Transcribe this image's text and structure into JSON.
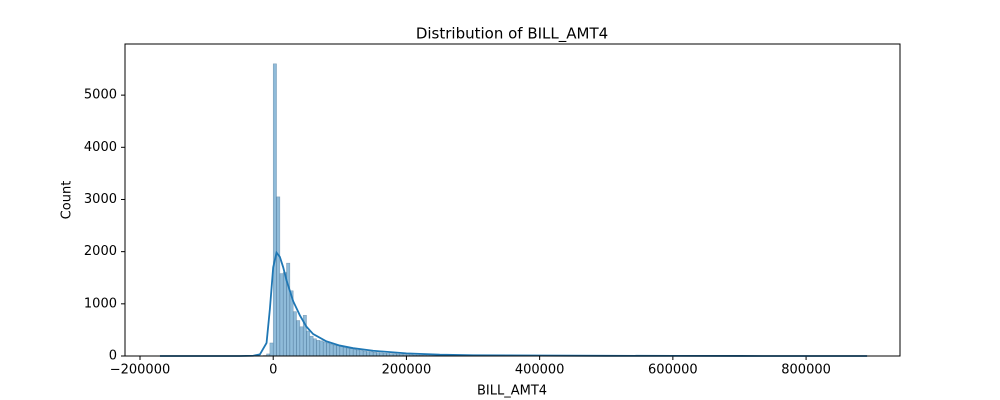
{
  "chart_data": {
    "type": "histogram",
    "title": "Distribution of BILL_AMT4",
    "x_label": "BILL_AMT4",
    "y_label": "Count",
    "color": "#1f77b4",
    "bins": [
      -170000,
      -165000,
      -160000,
      -155000,
      -150000,
      -145000,
      -140000,
      -135000,
      -130000,
      -125000,
      -120000,
      -115000,
      -110000,
      -105000,
      -100000,
      -95000,
      -90000,
      -85000,
      -80000,
      -75000,
      -70000,
      -65000,
      -60000,
      -55000,
      -50000,
      -45000,
      -40000,
      -35000,
      -30000,
      -25000,
      -20000,
      -15000,
      -10000,
      -5000,
      0,
      5000,
      10000,
      15000,
      20000,
      25000,
      30000,
      35000,
      40000,
      45000,
      50000,
      55000,
      60000,
      65000,
      70000,
      75000,
      80000,
      85000,
      90000,
      95000,
      100000,
      105000,
      110000,
      115000,
      120000,
      125000,
      130000,
      135000,
      140000,
      145000,
      150000,
      155000,
      160000,
      165000,
      170000,
      175000,
      180000,
      185000,
      190000,
      195000,
      200000,
      205000,
      210000,
      215000,
      220000,
      225000,
      230000,
      235000,
      240000,
      245000,
      250000,
      255000,
      260000,
      265000,
      270000,
      275000,
      280000,
      285000,
      290000,
      295000,
      300000,
      305000,
      310000,
      315000,
      320000,
      325000,
      330000,
      335000,
      340000,
      345000,
      350000,
      355000,
      360000,
      365000,
      370000,
      375000,
      380000,
      385000,
      390000,
      395000,
      400000,
      405000,
      410000,
      415000,
      420000,
      425000,
      430000,
      435000,
      440000,
      445000,
      450000,
      455000,
      460000,
      465000,
      470000,
      475000,
      480000,
      485000,
      490000,
      495000,
      500000,
      505000,
      510000,
      515000,
      520000,
      525000,
      530000,
      535000,
      540000,
      545000,
      550000,
      555000,
      560000,
      565000,
      570000,
      575000,
      580000,
      585000,
      590000,
      595000,
      600000,
      605000,
      610000,
      615000,
      620000,
      625000,
      630000,
      635000,
      640000,
      645000,
      650000,
      655000,
      660000,
      665000,
      670000,
      675000,
      680000,
      685000,
      690000,
      695000,
      700000,
      705000,
      710000,
      715000,
      720000,
      725000,
      730000,
      735000,
      740000,
      745000,
      750000,
      755000,
      760000,
      765000,
      770000,
      775000,
      780000,
      785000,
      790000,
      795000,
      800000,
      805000,
      810000,
      815000,
      820000,
      825000,
      830000,
      835000,
      840000,
      845000,
      850000,
      855000,
      860000,
      865000,
      870000,
      875000,
      880000,
      885000,
      890000,
      895000
    ],
    "counts": [
      1,
      0,
      0,
      0,
      0,
      0,
      0,
      0,
      0,
      0,
      0,
      0,
      0,
      0,
      0,
      0,
      0,
      0,
      0,
      0,
      0,
      0,
      0,
      0,
      0,
      0,
      0,
      0,
      0,
      0,
      5,
      10,
      40,
      250,
      5600,
      3050,
      1580,
      1600,
      1780,
      1250,
      850,
      680,
      560,
      780,
      480,
      380,
      330,
      300,
      290,
      270,
      250,
      230,
      210,
      200,
      190,
      170,
      150,
      140,
      125,
      115,
      105,
      95,
      85,
      80,
      72,
      65,
      60,
      55,
      50,
      46,
      42,
      38,
      35,
      30,
      25,
      22,
      19,
      17,
      15,
      13,
      12,
      11,
      10,
      9,
      8,
      8,
      7,
      7,
      6,
      6,
      5,
      5,
      5,
      4,
      4,
      4,
      3,
      3,
      3,
      3,
      2,
      2,
      2,
      2,
      2,
      2,
      2,
      1,
      1,
      1,
      1,
      1,
      1,
      1,
      1,
      1,
      0,
      1,
      1,
      0,
      1,
      0,
      1,
      0,
      0,
      1,
      0,
      0,
      1,
      0,
      0,
      0,
      1,
      0,
      0,
      1,
      0,
      0,
      0,
      1,
      0,
      0,
      0,
      0,
      1,
      0,
      0,
      0,
      0,
      0,
      1,
      0,
      0,
      0,
      0,
      0,
      0,
      1,
      0,
      0,
      0,
      0,
      0,
      0,
      0,
      0,
      1,
      0,
      0,
      0,
      0,
      0,
      0,
      0,
      0,
      0,
      0,
      0,
      0,
      1,
      0,
      0,
      0,
      0,
      0,
      0,
      0,
      0,
      0,
      0,
      0,
      0,
      0,
      0,
      0,
      0,
      0,
      0,
      0,
      0,
      0,
      0,
      0,
      0,
      0,
      0,
      0,
      0,
      0,
      0,
      0,
      0,
      1
    ],
    "kde": {
      "x": [
        -170000,
        -50000,
        -30000,
        -20000,
        -10000,
        -5000,
        0,
        5000,
        10000,
        15000,
        20000,
        30000,
        40000,
        50000,
        60000,
        80000,
        100000,
        120000,
        150000,
        200000,
        250000,
        300000,
        400000,
        500000,
        600000,
        700000,
        800000,
        891586
      ],
      "values": [
        0,
        0,
        5,
        30,
        250,
        900,
        1700,
        1980,
        1900,
        1700,
        1450,
        1050,
        780,
        560,
        420,
        280,
        200,
        150,
        100,
        50,
        25,
        15,
        8,
        4,
        2,
        1,
        0,
        0
      ]
    },
    "xlim": [
      -222500,
      941000
    ],
    "xticks": [
      {
        "value": -200000,
        "label": "−200000"
      },
      0,
      200000,
      400000,
      600000,
      800000
    ],
    "ylim": [
      0,
      5980
    ],
    "yticks": [
      0,
      1000,
      2000,
      3000,
      4000,
      5000
    ]
  }
}
